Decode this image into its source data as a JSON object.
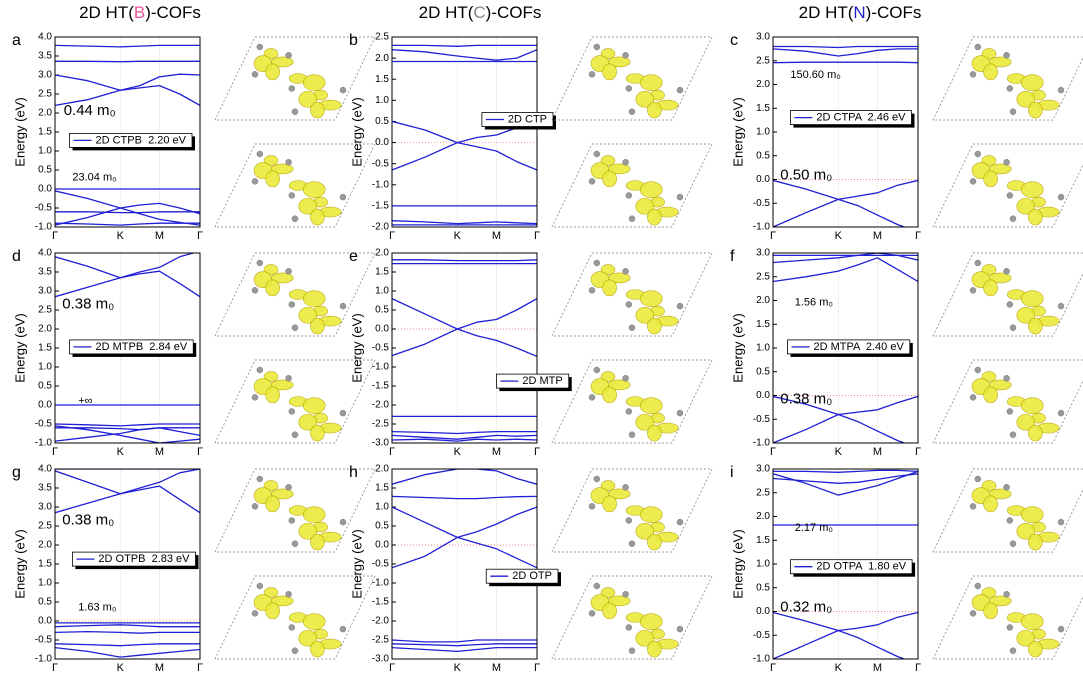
{
  "headers": [
    {
      "parts": [
        "2D HT(",
        "B",
        ")-COFs"
      ]
    },
    {
      "parts": [
        "2D HT(",
        "C",
        ")-COFs"
      ]
    },
    {
      "parts": [
        "2D HT(",
        "N",
        ")-COFs"
      ]
    }
  ],
  "y_label": "Energy (eV)",
  "kpoints": [
    "Γ",
    "K",
    "M",
    "Γ"
  ],
  "panels": [
    {
      "label": "a",
      "yticks": [
        "4.0",
        "3.5",
        "3.0",
        "2.5",
        "2.0",
        "1.5",
        "1.0",
        "0.5",
        "0.0",
        "-0.5",
        "-1.0"
      ],
      "legend": "2D CTPB  2.20 eV",
      "masses": [
        "0.44 m₀",
        "23.04 m₀"
      ],
      "bands": [
        [
          3.78,
          3.76,
          3.74,
          3.76,
          3.78,
          3.78,
          3.78
        ],
        [
          3.36,
          3.36,
          3.35,
          3.36,
          3.36,
          3.36,
          3.36
        ],
        [
          2.2,
          2.35,
          2.6,
          2.66,
          2.72,
          2.5,
          2.2
        ],
        [
          3.0,
          2.85,
          2.6,
          2.72,
          2.95,
          3.02,
          3.0
        ],
        [
          0.0,
          0.0,
          0.0,
          0.0,
          0.0,
          0.0,
          0.0
        ],
        [
          -0.6,
          -0.6,
          -0.62,
          -0.62,
          -0.6,
          -0.6,
          -0.6
        ],
        [
          -0.05,
          -0.25,
          -0.5,
          -0.65,
          -0.8,
          -0.88,
          -0.95
        ],
        [
          -0.95,
          -0.75,
          -0.5,
          -0.42,
          -0.38,
          -0.5,
          -0.65
        ],
        [
          -0.9,
          -0.92,
          -0.95,
          -0.92,
          -0.9,
          -0.9,
          -0.9
        ]
      ]
    },
    {
      "label": "b",
      "yticks": [
        "2.5",
        "2.0",
        "1.5",
        "1.0",
        "0.5",
        "0.0",
        "-0.5",
        "-1.0",
        "-1.5",
        "-2.0"
      ],
      "legend": "2D CTP",
      "masses": [],
      "bands": [
        [
          2.3,
          2.3,
          2.28,
          2.3,
          2.3,
          2.3,
          2.3
        ],
        [
          2.2,
          2.15,
          2.05,
          2.0,
          1.95,
          2.0,
          2.2
        ],
        [
          1.92,
          1.92,
          1.92,
          1.92,
          1.92,
          1.92,
          1.92
        ],
        [
          0.5,
          0.3,
          0.0,
          0.12,
          0.18,
          0.35,
          0.5
        ],
        [
          -0.65,
          -0.35,
          0.0,
          -0.1,
          -0.2,
          -0.45,
          -0.65
        ],
        [
          -1.5,
          -1.5,
          -1.5,
          -1.5,
          -1.5,
          -1.5,
          -1.5
        ],
        [
          -1.85,
          -1.88,
          -1.92,
          -1.9,
          -1.88,
          -1.9,
          -1.92
        ],
        [
          -1.95,
          -1.95,
          -1.95,
          -1.95,
          -1.95,
          -1.95,
          -1.95
        ]
      ]
    },
    {
      "label": "c",
      "yticks": [
        "3.0",
        "2.5",
        "2.0",
        "1.5",
        "1.0",
        "0.5",
        "0.0",
        "-0.5",
        "-1.0"
      ],
      "legend": "2D CTPA  2.46 eV",
      "masses": [
        "150.60 m₀",
        "0.50 m₀"
      ],
      "bands": [
        [
          2.8,
          2.8,
          2.78,
          2.8,
          2.8,
          2.8,
          2.8
        ],
        [
          2.75,
          2.7,
          2.6,
          2.65,
          2.72,
          2.75,
          2.75
        ],
        [
          2.46,
          2.47,
          2.47,
          2.47,
          2.47,
          2.47,
          2.46
        ],
        [
          -0.02,
          -0.2,
          -0.42,
          -0.35,
          -0.28,
          -0.12,
          -0.02
        ],
        [
          -1.0,
          -0.7,
          -0.42,
          -0.55,
          -0.75,
          -0.95,
          -1.1
        ]
      ]
    },
    {
      "label": "d",
      "yticks": [
        "4.0",
        "3.5",
        "3.0",
        "2.5",
        "2.0",
        "1.5",
        "1.0",
        "0.5",
        "0.0",
        "-0.5",
        "-1.0"
      ],
      "legend": "2D MTPB  2.84 eV",
      "masses": [
        "0.38 m₀",
        "+∞"
      ],
      "bands": [
        [
          2.85,
          3.1,
          3.35,
          3.45,
          3.52,
          3.2,
          2.85
        ],
        [
          3.9,
          3.65,
          3.35,
          3.5,
          3.62,
          3.9,
          4.05
        ],
        [
          0.0,
          0.0,
          0.0,
          0.0,
          0.0,
          0.0,
          0.0
        ],
        [
          -0.5,
          -0.52,
          -0.55,
          -0.52,
          -0.5,
          -0.5,
          -0.5
        ],
        [
          -0.6,
          -0.6,
          -0.62,
          -0.65,
          -0.6,
          -0.6,
          -0.6
        ],
        [
          -0.55,
          -0.65,
          -0.8,
          -0.9,
          -1.0,
          -0.95,
          -0.9
        ],
        [
          -0.95,
          -0.85,
          -0.75,
          -0.65,
          -0.6,
          -0.7,
          -0.8
        ]
      ]
    },
    {
      "label": "e",
      "yticks": [
        "2.0",
        "1.5",
        "1.0",
        "0.5",
        "0.0",
        "-0.5",
        "-1.0",
        "-1.5",
        "-2.0",
        "-2.5",
        "-3.0"
      ],
      "legend": "2D MTP",
      "masses": [],
      "bands": [
        [
          1.82,
          1.82,
          1.8,
          1.8,
          1.8,
          1.8,
          1.82
        ],
        [
          1.72,
          1.72,
          1.72,
          1.72,
          1.72,
          1.72,
          1.72
        ],
        [
          0.8,
          0.4,
          0.0,
          0.18,
          0.25,
          0.5,
          0.8
        ],
        [
          -0.7,
          -0.4,
          0.0,
          -0.18,
          -0.3,
          -0.5,
          -0.72
        ],
        [
          -2.3,
          -2.3,
          -2.3,
          -2.3,
          -2.3,
          -2.3,
          -2.3
        ],
        [
          -2.7,
          -2.72,
          -2.75,
          -2.72,
          -2.7,
          -2.7,
          -2.7
        ],
        [
          -2.8,
          -2.85,
          -2.9,
          -2.85,
          -2.8,
          -2.82,
          -2.8
        ],
        [
          -2.92,
          -2.9,
          -2.95,
          -2.9,
          -2.92,
          -2.9,
          -2.92
        ]
      ]
    },
    {
      "label": "f",
      "yticks": [
        "3.0",
        "2.5",
        "2.0",
        "1.5",
        "1.0",
        "0.5",
        "0.0",
        "-0.5",
        "-1.0"
      ],
      "legend": "2D MTPA  2.40 eV",
      "masses": [
        "1.56 m₀",
        "0.38 m₀"
      ],
      "bands": [
        [
          2.95,
          2.95,
          2.95,
          2.95,
          2.95,
          2.95,
          2.95
        ],
        [
          2.8,
          2.85,
          2.9,
          2.95,
          3.0,
          2.95,
          2.85
        ],
        [
          2.4,
          2.5,
          2.62,
          2.75,
          2.9,
          2.65,
          2.4
        ],
        [
          -0.02,
          -0.18,
          -0.4,
          -0.35,
          -0.3,
          -0.15,
          -0.02
        ],
        [
          -1.0,
          -0.72,
          -0.4,
          -0.55,
          -0.75,
          -0.95,
          -1.1
        ]
      ]
    },
    {
      "label": "g",
      "yticks": [
        "4.0",
        "3.5",
        "3.0",
        "2.5",
        "2.0",
        "1.5",
        "1.0",
        "0.5",
        "0.0",
        "-0.5",
        "-1.0"
      ],
      "legend": "2D OTPB  2.83 eV",
      "masses": [
        "0.38 m₀",
        "1.63 m₀"
      ],
      "bands": [
        [
          4.0,
          4.0,
          4.0,
          4.0,
          4.0,
          4.0,
          4.0
        ],
        [
          2.85,
          3.1,
          3.35,
          3.45,
          3.55,
          3.2,
          2.85
        ],
        [
          3.95,
          3.65,
          3.35,
          3.5,
          3.65,
          3.9,
          4.0
        ],
        [
          -0.05,
          -0.05,
          -0.05,
          -0.05,
          -0.05,
          -0.05,
          -0.05
        ],
        [
          -0.15,
          -0.12,
          -0.1,
          -0.12,
          -0.15,
          -0.15,
          -0.15
        ],
        [
          -0.3,
          -0.28,
          -0.3,
          -0.32,
          -0.3,
          -0.3,
          -0.3
        ],
        [
          -0.6,
          -0.62,
          -0.65,
          -0.62,
          -0.6,
          -0.6,
          -0.6
        ],
        [
          -0.7,
          -0.8,
          -0.95,
          -0.9,
          -0.85,
          -0.8,
          -0.75
        ]
      ]
    },
    {
      "label": "h",
      "yticks": [
        "2.0",
        "1.5",
        "1.0",
        "0.5",
        "0.0",
        "-0.5",
        "-1.0",
        "-1.5",
        "-2.0",
        "-2.5",
        "-3.0"
      ],
      "legend": "2D OTP",
      "masses": [],
      "bands": [
        [
          1.6,
          1.85,
          2.0,
          2.0,
          1.95,
          1.75,
          1.6
        ],
        [
          1.28,
          1.25,
          1.22,
          1.22,
          1.25,
          1.27,
          1.28
        ],
        [
          1.0,
          0.6,
          0.2,
          0.35,
          0.55,
          0.8,
          1.0
        ],
        [
          -0.6,
          -0.3,
          0.2,
          0.05,
          -0.1,
          -0.35,
          -0.6
        ],
        [
          -2.5,
          -2.55,
          -2.55,
          -2.5,
          -2.5,
          -2.5,
          -2.5
        ],
        [
          -2.6,
          -2.62,
          -2.65,
          -2.62,
          -2.6,
          -2.6,
          -2.6
        ],
        [
          -2.7,
          -2.75,
          -2.8,
          -2.75,
          -2.7,
          -2.7,
          -2.7
        ]
      ]
    },
    {
      "label": "i",
      "yticks": [
        "3.0",
        "2.5",
        "2.0",
        "1.5",
        "1.0",
        "0.5",
        "0.0",
        "-0.5",
        "-1.0"
      ],
      "legend": "2D OTPA  1.80 eV",
      "masses": [
        "2.17 m₀",
        "0.32 m₀"
      ],
      "bands": [
        [
          2.95,
          2.95,
          2.93,
          2.95,
          2.97,
          2.97,
          2.95
        ],
        [
          2.8,
          2.75,
          2.7,
          2.72,
          2.78,
          2.85,
          2.9
        ],
        [
          2.9,
          2.7,
          2.45,
          2.55,
          2.65,
          2.8,
          2.95
        ],
        [
          1.82,
          1.82,
          1.82,
          1.82,
          1.82,
          1.82,
          1.82
        ],
        [
          -0.02,
          -0.2,
          -0.4,
          -0.35,
          -0.28,
          -0.12,
          -0.02
        ],
        [
          -1.0,
          -0.7,
          -0.4,
          -0.55,
          -0.75,
          -0.95,
          -1.1
        ]
      ]
    }
  ]
}
